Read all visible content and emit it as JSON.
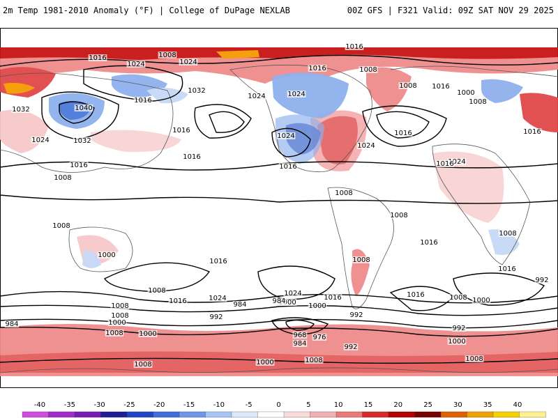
{
  "header": {
    "title": "2m Temp 1981-2010 Anomaly (°F) | College of DuPage NEXLAB",
    "run_info": "00Z GFS | F321 Valid: 09Z SAT NOV 29 2025"
  },
  "colors": {
    "warm_light": "#f7c9c9",
    "warm_med": "#ef8c8c",
    "warm_strong": "#e04848",
    "warm_deep": "#c81414",
    "warm_extreme": "#a00000",
    "warm_hot": "#f59a00",
    "cold_light": "#c6d8f5",
    "cold_med": "#8fb0ec",
    "cold_strong": "#4a7ad8",
    "cold_deep": "#1f3fb0"
  },
  "colorbar": {
    "ticks": [
      "-40",
      "-35",
      "-30",
      "-25",
      "-20",
      "-15",
      "-10",
      "-5",
      "0",
      "5",
      "10",
      "15",
      "20",
      "25",
      "30",
      "35",
      "40"
    ],
    "colors": [
      "#d14be0",
      "#a22bd0",
      "#7a1ab8",
      "#1e1e96",
      "#1e46c8",
      "#3c6ee0",
      "#6e96ec",
      "#a8c4f4",
      "#dce8fb",
      "#ffffff",
      "#fbdada",
      "#f4b0b0",
      "#ec7878",
      "#d82828",
      "#b40000",
      "#7a0000",
      "#e06000",
      "#f0a000",
      "#f8d000",
      "#fff090"
    ]
  },
  "isobars": [
    {
      "text": "1016"
    },
    {
      "text": "1008"
    },
    {
      "text": "1024"
    },
    {
      "text": "1032"
    },
    {
      "text": "1040"
    },
    {
      "text": "1024"
    },
    {
      "text": "1032"
    },
    {
      "text": "1016"
    },
    {
      "text": "1032"
    },
    {
      "text": "1016"
    },
    {
      "text": "1024"
    },
    {
      "text": "1016"
    },
    {
      "text": "1024"
    },
    {
      "text": "1016"
    },
    {
      "text": "1016"
    },
    {
      "text": "1008"
    },
    {
      "text": "1016"
    },
    {
      "text": "1008"
    },
    {
      "text": "1024"
    },
    {
      "text": "1024"
    },
    {
      "text": "1024"
    },
    {
      "text": "1016"
    },
    {
      "text": "1008"
    },
    {
      "text": "1016"
    },
    {
      "text": "1024"
    },
    {
      "text": "1016"
    },
    {
      "text": "1000"
    },
    {
      "text": "1008"
    },
    {
      "text": "1016"
    },
    {
      "text": "1016"
    },
    {
      "text": "1008"
    },
    {
      "text": "1008"
    },
    {
      "text": "1008"
    },
    {
      "text": "1008"
    },
    {
      "text": "1000"
    },
    {
      "text": "1016"
    },
    {
      "text": "1016"
    },
    {
      "text": "1008"
    },
    {
      "text": "1016"
    },
    {
      "text": "1008"
    },
    {
      "text": "1024"
    },
    {
      "text": "1016"
    },
    {
      "text": "1024"
    },
    {
      "text": "1016"
    },
    {
      "text": "984"
    },
    {
      "text": "1008"
    },
    {
      "text": "1000"
    },
    {
      "text": "1016"
    },
    {
      "text": "1008"
    },
    {
      "text": "992"
    },
    {
      "text": "1008"
    },
    {
      "text": "1000"
    },
    {
      "text": "1000"
    },
    {
      "text": "1008"
    },
    {
      "text": "1000"
    },
    {
      "text": "984"
    },
    {
      "text": "992"
    },
    {
      "text": "984"
    },
    {
      "text": "968"
    },
    {
      "text": "976"
    },
    {
      "text": "984"
    },
    {
      "text": "992"
    },
    {
      "text": "992"
    },
    {
      "text": "1000"
    },
    {
      "text": "1008"
    },
    {
      "text": "1000"
    },
    {
      "text": "1008"
    },
    {
      "text": "1008"
    },
    {
      "text": "992"
    },
    {
      "text": "1000"
    }
  ]
}
